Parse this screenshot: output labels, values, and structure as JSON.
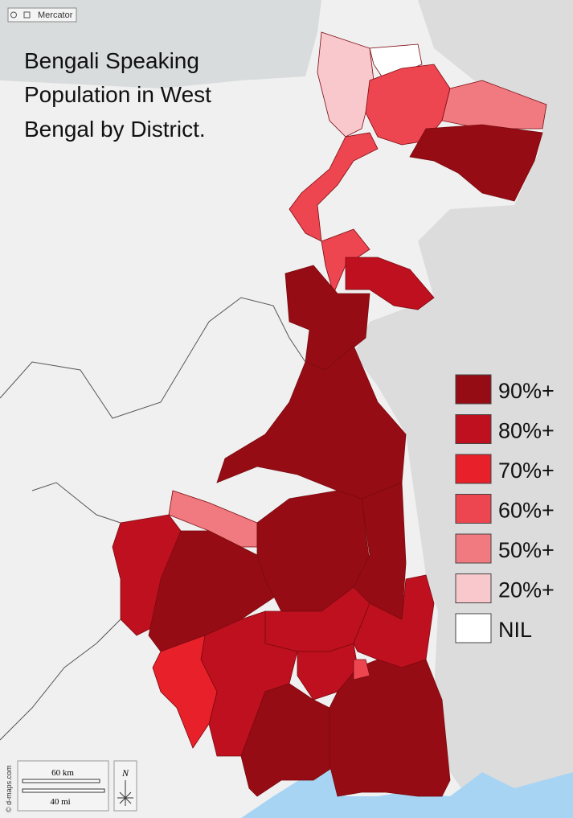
{
  "title_lines": [
    "Bengali Speaking",
    "Population in West",
    "Bengal by District."
  ],
  "legend": [
    {
      "label": "90%+",
      "color": "#960c14"
    },
    {
      "label": "80%+",
      "color": "#be101e"
    },
    {
      "label": "70%+",
      "color": "#e8202a"
    },
    {
      "label": "60%+",
      "color": "#ee4650"
    },
    {
      "label": "50%+",
      "color": "#f07a80"
    },
    {
      "label": "20%+",
      "color": "#f8c8cc"
    },
    {
      "label": "NIL",
      "color": "#ffffff"
    }
  ],
  "projection": "Mercator",
  "scale": {
    "km": "60 km",
    "mi": "40 mi"
  },
  "north": "N",
  "credit": "© d-maps.com"
}
